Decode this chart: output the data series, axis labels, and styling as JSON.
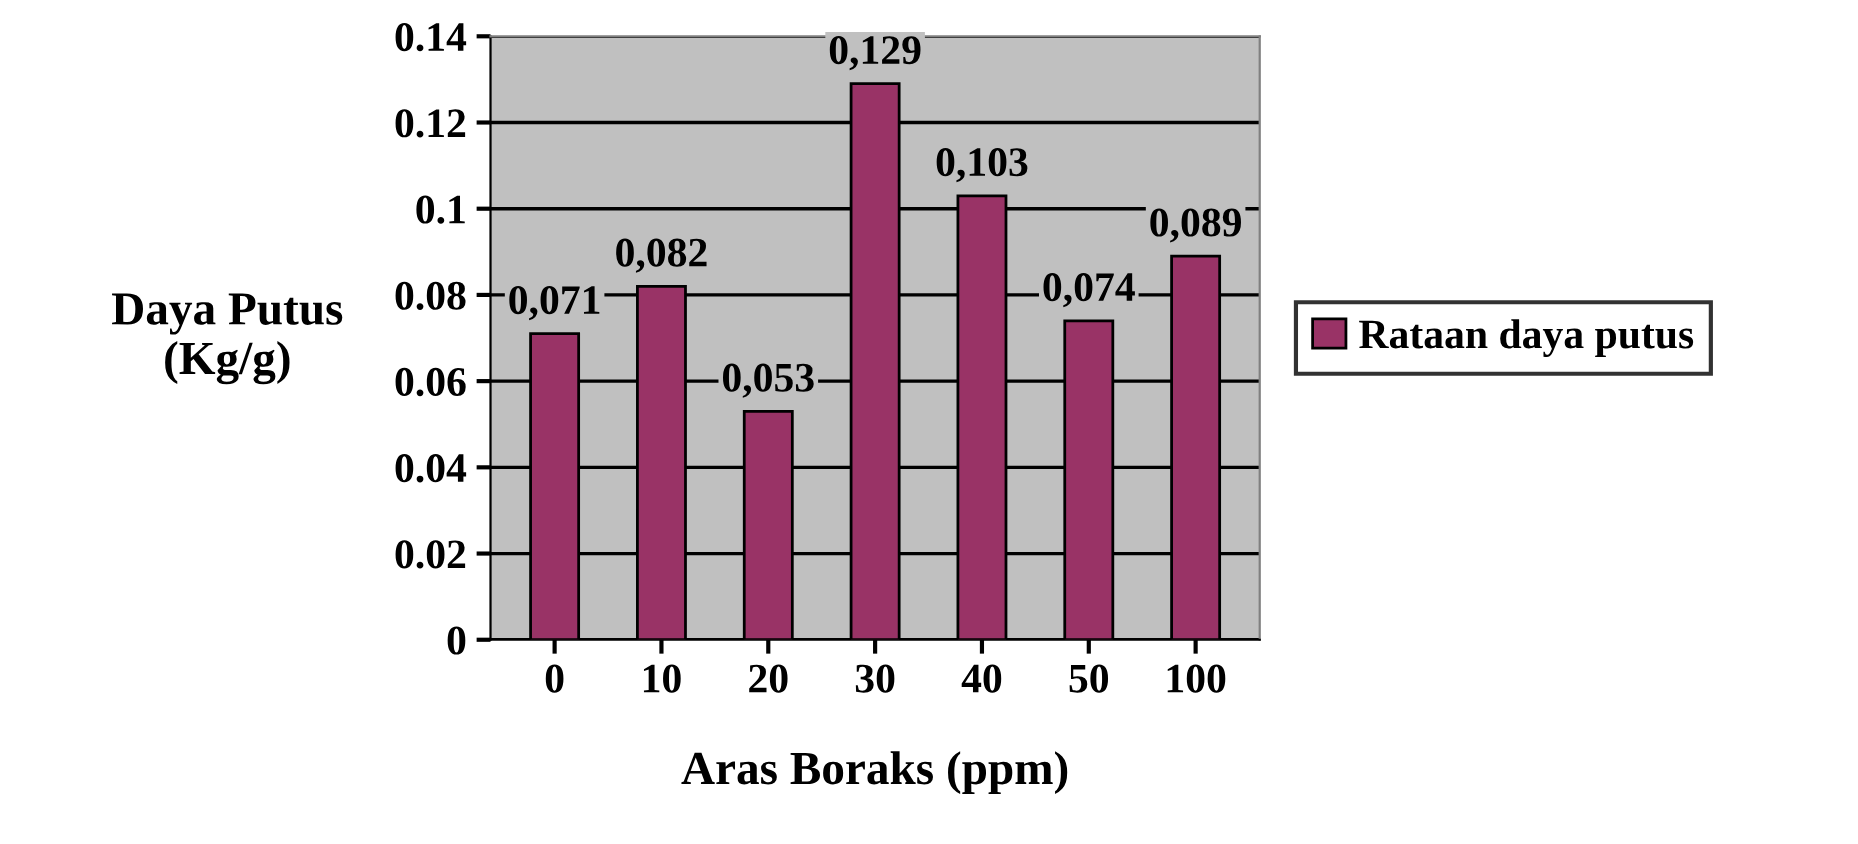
{
  "chart_data": {
    "type": "bar",
    "xlabel": "Aras Boraks (ppm)",
    "ylabel": "Daya Putus\n(Kg/g)",
    "categories": [
      "0",
      "10",
      "20",
      "30",
      "40",
      "50",
      "100"
    ],
    "series": [
      {
        "name": "Rataan daya putus",
        "color": "#993366",
        "values": [
          0.071,
          0.082,
          0.053,
          0.129,
          0.103,
          0.074,
          0.089
        ],
        "value_labels": [
          "0,071",
          "0,082",
          "0,053",
          "0,129",
          "0,103",
          "0,074",
          "0,089"
        ]
      }
    ],
    "ylim": [
      0,
      0.14
    ],
    "yticks": [
      0,
      0.02,
      0.04,
      0.06,
      0.08,
      0.1,
      0.12,
      0.14
    ],
    "grid": "y",
    "legend": "right"
  }
}
